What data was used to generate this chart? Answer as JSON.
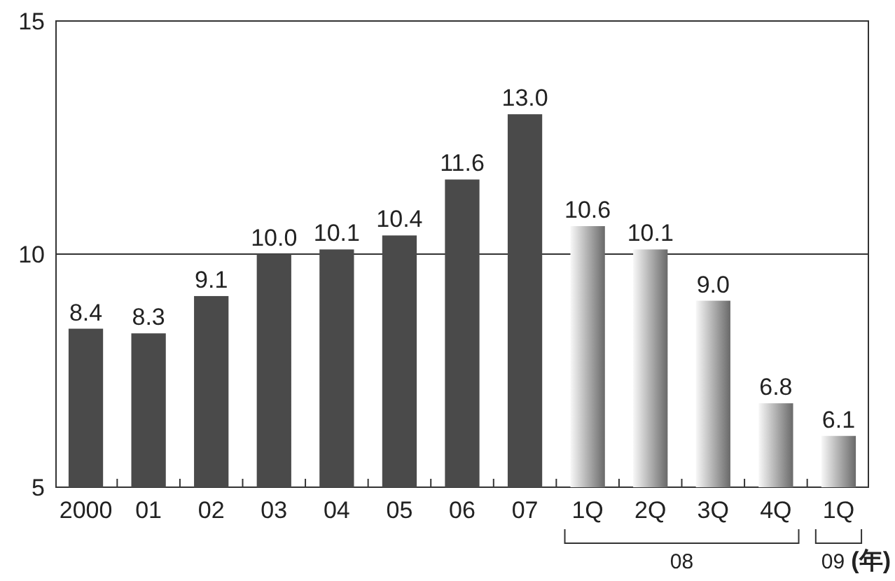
{
  "chart_data": {
    "type": "bar",
    "xlabel": "(年)",
    "categories": [
      "2000",
      "01",
      "02",
      "03",
      "04",
      "05",
      "06",
      "07",
      "1Q",
      "2Q",
      "3Q",
      "4Q",
      "1Q"
    ],
    "values": [
      8.4,
      8.3,
      9.1,
      10.0,
      10.1,
      10.4,
      11.6,
      13.0,
      10.6,
      10.1,
      9.0,
      6.8,
      6.1
    ],
    "colors": [
      "#4a4a4a",
      "#4a4a4a",
      "#4a4a4a",
      "#4a4a4a",
      "#4a4a4a",
      "#4a4a4a",
      "#4a4a4a",
      "#4a4a4a",
      "#8c8c8c",
      "#8c8c8c",
      "#8c8c8c",
      "#8c8c8c",
      "#8c8c8c"
    ],
    "value_labels": [
      "8.4",
      "8.3",
      "9.1",
      "10.0",
      "10.1",
      "10.4",
      "11.6",
      "13.0",
      "10.6",
      "10.1",
      "9.0",
      "6.8",
      "6.1"
    ],
    "ylim": [
      5,
      15
    ],
    "yticks": [
      5,
      10,
      15
    ],
    "grid": "y",
    "annotations": [
      "08",
      "09"
    ]
  }
}
